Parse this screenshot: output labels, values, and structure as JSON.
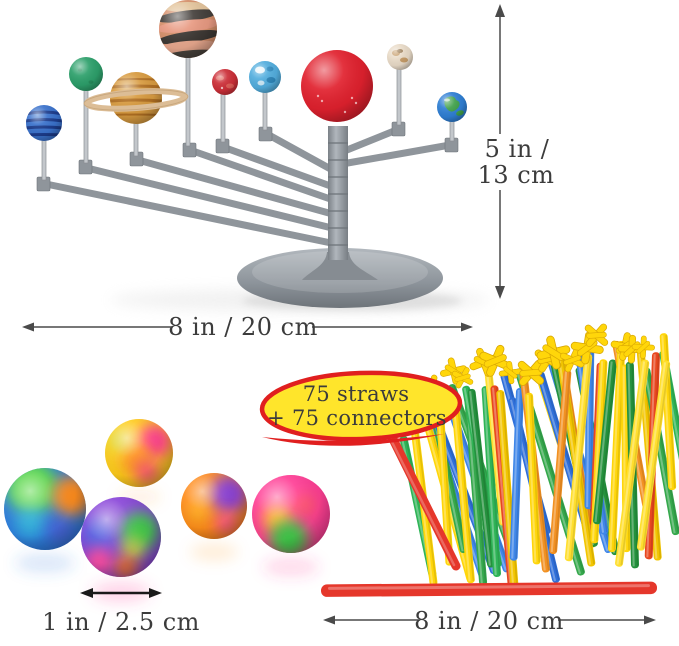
{
  "background": "#ffffff",
  "text_color": "#3c3c3c",
  "arrow_color": "#4a4a4a",
  "labels": {
    "model_height_line1": "5 in /",
    "model_height_line2": "13 cm",
    "model_width": "8 in / 20 cm",
    "pom_size": "1 in / 2.5 cm",
    "straw_length": "8 in / 20 cm"
  },
  "callout": {
    "line1": "75 straws",
    "line2": "+ 75 connectors",
    "fill": "#ffe52b",
    "border": "#e01f1f"
  },
  "planets": [
    {
      "name": "neptune",
      "color": "#3a72cc"
    },
    {
      "name": "uranus",
      "color": "#2da06b"
    },
    {
      "name": "saturn",
      "color": "#d89b40"
    },
    {
      "name": "jupiter",
      "color": "#d6906b"
    },
    {
      "name": "mars",
      "color": "#cc2f38"
    },
    {
      "name": "mercury",
      "color": "#53aede"
    },
    {
      "name": "sun",
      "color": "#e1212e"
    },
    {
      "name": "pluto",
      "color": "#e9dbc8"
    },
    {
      "name": "earth",
      "color": "#2f7fd4"
    }
  ],
  "model": {
    "stand_color": "#8f959b",
    "pin_color": "#c3c7cb"
  },
  "pom_poms": {
    "count": 5,
    "balls": [
      {
        "colors": [
          "#52d63f",
          "#ff8c1c",
          "#2f7de0"
        ]
      },
      {
        "colors": [
          "#ffcf1e",
          "#ff3f8e",
          "#ff8c1c"
        ]
      },
      {
        "colors": [
          "#8a46d9",
          "#3fc94a",
          "#ff4fa0",
          "#ff7a1c"
        ]
      },
      {
        "colors": [
          "#ff8c1c",
          "#8a3fd4",
          "#ff4fa0"
        ]
      },
      {
        "colors": [
          "#ff3f96",
          "#ffd21c",
          "#3fc94a"
        ]
      }
    ]
  },
  "straws": {
    "count": 46,
    "connector_count": 15,
    "palette": [
      "#ffd60a",
      "#f2c500",
      "#35a84c",
      "#2fb457",
      "#2f6fd9",
      "#3f86e8",
      "#f29122",
      "#e8471f",
      "#a82a1c",
      "#ffdf2e",
      "#ffd60a",
      "#24913d",
      "#ffd60a"
    ],
    "connector_color": "#ffd60a",
    "red_straw_color": "#e5372b"
  }
}
